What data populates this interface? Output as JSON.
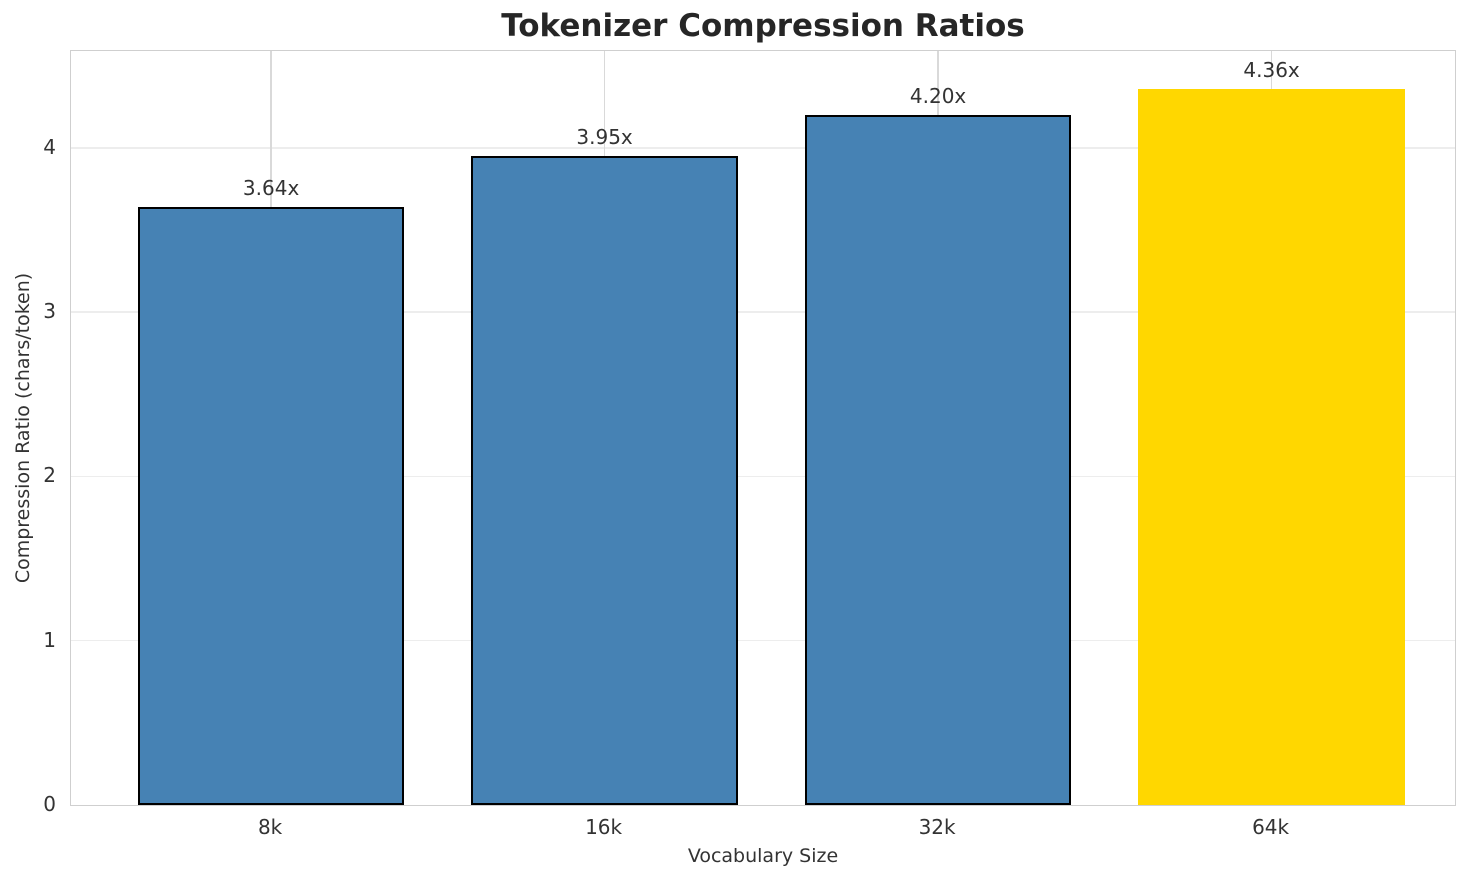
{
  "chart_data": {
    "type": "bar",
    "title": "Tokenizer Compression Ratios",
    "xlabel": "Vocabulary Size",
    "ylabel": "Compression Ratio (chars/token)",
    "categories": [
      "8k",
      "16k",
      "32k",
      "64k"
    ],
    "values": [
      3.64,
      3.95,
      4.2,
      4.36
    ],
    "bar_labels": [
      "3.64x",
      "3.95x",
      "4.20x",
      "4.36x"
    ],
    "bar_colors": [
      "#4682B4",
      "#4682B4",
      "#4682B4",
      "#FFD700"
    ],
    "bar_edge_colors": [
      "#000000",
      "#000000",
      "#000000",
      "none"
    ],
    "yticks": [
      0,
      1,
      2,
      3,
      4
    ],
    "ylim": [
      0,
      4.59
    ],
    "grid": true,
    "legend": "none",
    "style": {
      "highlight_color": "#FFD700",
      "series_color": "#4682B4",
      "title_color": "#262626",
      "text_color": "#333333",
      "spine_color": "#cfcfcf",
      "hgrid_color": "#ededed",
      "vgrid_color": "#d9d9d9"
    }
  }
}
